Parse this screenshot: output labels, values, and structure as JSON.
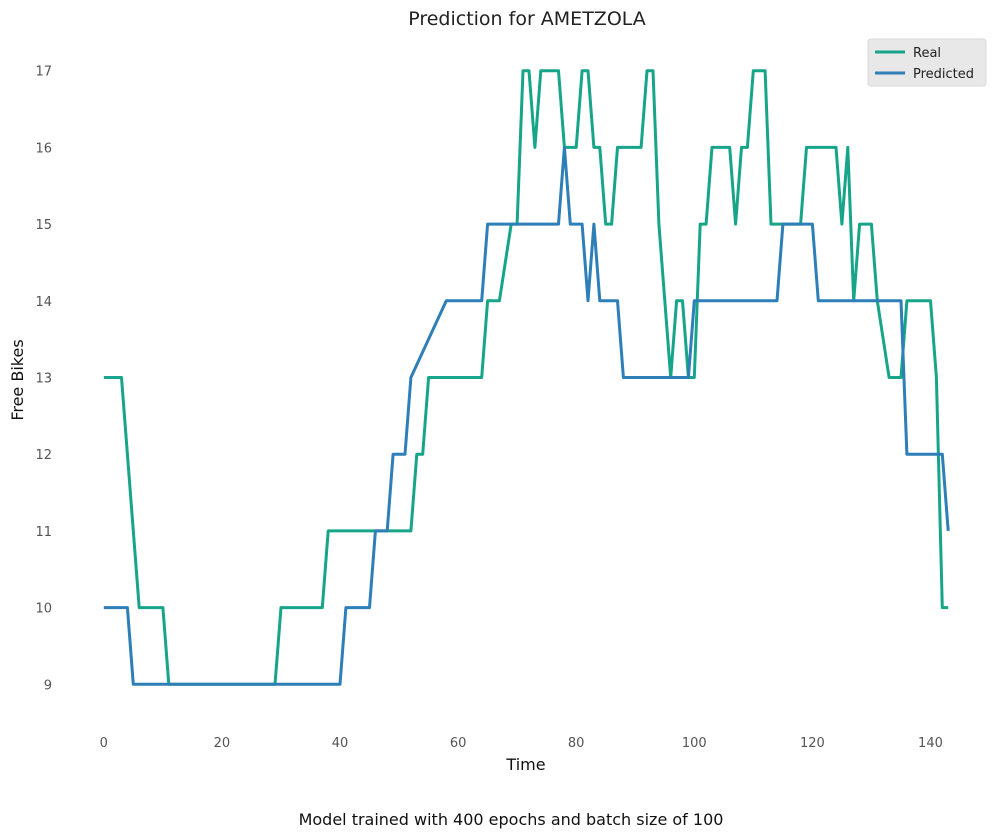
{
  "chart_data": {
    "type": "line",
    "title": "Prediction for AMETZOLA",
    "xlabel": "Time",
    "ylabel": "Free Bikes",
    "caption": "Model trained with 400 epochs and batch size of 100",
    "xlim": [
      -2,
      145
    ],
    "ylim": [
      8.6,
      17.4
    ],
    "xticks": [
      0,
      20,
      40,
      60,
      80,
      100,
      120,
      140
    ],
    "yticks": [
      9,
      10,
      11,
      12,
      13,
      14,
      15,
      16,
      17
    ],
    "grid": false,
    "legend": "top-right",
    "series": [
      {
        "name": "Real",
        "color": "#17a589",
        "x": [
          0,
          3,
          6,
          10,
          11,
          29,
          30,
          37,
          38,
          52,
          53,
          54,
          55,
          56,
          64,
          65,
          67,
          69,
          70,
          71,
          72,
          73,
          74,
          75,
          77,
          78,
          79,
          80,
          81,
          82,
          83,
          84,
          85,
          86,
          87,
          88,
          91,
          92,
          93,
          94,
          95,
          96,
          97,
          98,
          99,
          100,
          101,
          102,
          103,
          104,
          105,
          106,
          107,
          108,
          109,
          110,
          111,
          112,
          113,
          114,
          115,
          116,
          118,
          119,
          120,
          121,
          122,
          123,
          124,
          125,
          126,
          127,
          128,
          129,
          130,
          131,
          133,
          134,
          135,
          136,
          137,
          138,
          139,
          140,
          141,
          142,
          143
        ],
        "values": [
          13,
          13,
          10,
          10,
          9,
          9,
          10,
          10,
          11,
          11,
          12,
          12,
          13,
          13,
          13,
          14,
          14,
          15,
          15,
          17,
          17,
          16,
          17,
          17,
          17,
          16,
          16,
          16,
          17,
          17,
          16,
          16,
          15,
          15,
          16,
          16,
          16,
          17,
          17,
          15,
          14,
          13,
          14,
          14,
          13,
          13,
          15,
          15,
          16,
          16,
          16,
          16,
          15,
          16,
          16,
          17,
          17,
          17,
          15,
          15,
          15,
          15,
          15,
          16,
          16,
          16,
          16,
          16,
          16,
          15,
          16,
          14,
          15,
          15,
          15,
          14,
          13,
          13,
          13,
          14,
          14,
          14,
          14,
          14,
          13,
          10,
          10
        ]
      },
      {
        "name": "Predicted",
        "color": "#2e7eb8",
        "x": [
          0,
          4,
          5,
          10,
          11,
          40,
          41,
          45,
          46,
          48,
          49,
          51,
          52,
          58,
          64,
          65,
          77,
          78,
          79,
          80,
          81,
          82,
          83,
          84,
          86,
          87,
          88,
          99,
          100,
          114,
          115,
          120,
          121,
          135,
          136,
          141,
          142,
          143
        ],
        "values": [
          10,
          10,
          9,
          9,
          9,
          9,
          10,
          10,
          11,
          11,
          12,
          12,
          13,
          14,
          14,
          15,
          15,
          16,
          15,
          15,
          15,
          14,
          15,
          14,
          14,
          14,
          13,
          13,
          14,
          14,
          15,
          15,
          14,
          14,
          12,
          12,
          12,
          11
        ]
      }
    ]
  }
}
